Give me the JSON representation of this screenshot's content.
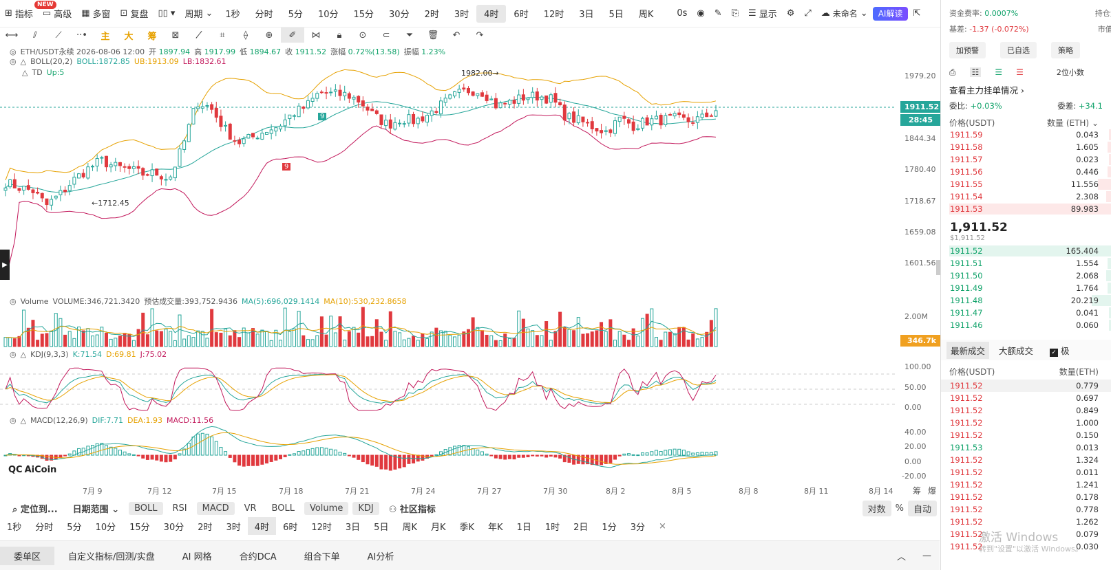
{
  "toolbar": {
    "items": [
      {
        "label": "指标",
        "icon": "indicator-icon"
      },
      {
        "label": "高级",
        "icon": "advanced-icon"
      },
      {
        "label": "多窗",
        "icon": "multiwindow-icon"
      },
      {
        "label": "复盘",
        "icon": "replay-icon"
      }
    ],
    "new_badge": "NEW",
    "period_label": "周期",
    "periods": [
      "1秒",
      "分时",
      "5分",
      "10分",
      "15分",
      "30分",
      "2时",
      "3时",
      "4时",
      "6时",
      "12时",
      "3日",
      "5日",
      "周K"
    ],
    "active_period": "4时",
    "countdown": "0s",
    "display_label": "显示",
    "unnamed_label": "未命名",
    "ai_label": "AI解读"
  },
  "chart_header": {
    "symbol_line": "ETH/USDT永续  2026-08-06 12:00",
    "open_label": "开",
    "open": "1897.94",
    "high_label": "高",
    "high": "1917.99",
    "low_label": "低",
    "low": "1894.67",
    "close_label": "收",
    "close": "1911.52",
    "change_label": "涨幅",
    "change": "0.72%(13.58)",
    "amp_label": "振幅",
    "amp": "1.23%",
    "boll_name": "BOLL(20,2)",
    "boll_mid": "BOLL:1872.85",
    "boll_ub": "UB:1913.09",
    "boll_lb": "LB:1832.61",
    "td_name": "TD",
    "td_val": "Up:5"
  },
  "volume_header": {
    "name": "Volume",
    "vol": "VOLUME:346,721.3420",
    "forecast": "预估成交量:393,752.9436",
    "ma5": "MA(5):696,029.1414",
    "ma10": "MA(10):530,232.8658"
  },
  "kdj_header": {
    "name": "KDJ(9,3,3)",
    "k": "K:71.54",
    "d": "D:69.81",
    "j": "J:75.02"
  },
  "macd_header": {
    "name": "MACD(12,26,9)",
    "dif": "DIF:7.71",
    "dea": "DEA:1.93",
    "macd": "MACD:11.56"
  },
  "price_axis": [
    "1979.20",
    "1844.34",
    "1780.40",
    "1718.67",
    "1659.08",
    "1601.56"
  ],
  "price_tags": {
    "last": "1911.52",
    "countdown": "28:45",
    "volume": "346.7k"
  },
  "annotations": {
    "high": "1982.00",
    "low": "1712.45",
    "td_up": "9",
    "td_down": "9"
  },
  "volume_axis": "2.00M",
  "kdj_axis": [
    "100.00",
    "50.00",
    "0.00"
  ],
  "macd_axis": [
    "40.00",
    "20.00",
    "0.00",
    "-20.00"
  ],
  "date_axis": [
    "7月 9",
    "7月 12",
    "7月 15",
    "7月 18",
    "7月 21",
    "7月 24",
    "7月 27",
    "7月 30",
    "8月 2",
    "8月 5",
    "8月 8",
    "8月 11",
    "8月 14"
  ],
  "brand": "AiCoin",
  "corner_labels": [
    "筹",
    "爆"
  ],
  "bottom_bar1": {
    "locate": "定位到...",
    "date_range": "日期范围",
    "indicators": [
      {
        "label": "BOLL",
        "chip": true
      },
      {
        "label": "RSI",
        "chip": false
      },
      {
        "label": "MACD",
        "chip": true
      },
      {
        "label": "VR",
        "chip": false
      },
      {
        "label": "BOLL",
        "chip": false
      },
      {
        "label": "Volume",
        "chip": true
      },
      {
        "label": "KDJ",
        "chip": true
      }
    ],
    "community": "社区指标",
    "log": "对数",
    "pct": "%",
    "auto": "自动"
  },
  "bottom_bar2": {
    "periods": [
      "1秒",
      "分时",
      "5分",
      "10分",
      "15分",
      "30分",
      "2时",
      "3时",
      "4时",
      "6时",
      "12时",
      "3日",
      "5日",
      "周K",
      "月K",
      "季K",
      "年K",
      "1日",
      "1时",
      "2日",
      "1分",
      "3分"
    ],
    "active": "4时"
  },
  "bottom_bar3": {
    "tabs": [
      "委单区",
      "自定义指标/回测/实盘",
      "AI 网格",
      "合约DCA",
      "组合下单",
      "AI分析"
    ]
  },
  "right_panel": {
    "funding_label": "资金费率:",
    "funding": "0.0007%",
    "basis_label": "基差:",
    "basis": "-1.37 (-0.072%)",
    "position_label": "持仓量(",
    "mktcap_label": "市值($",
    "buttons": [
      "加预警",
      "已自选",
      "策略"
    ],
    "depth_label": "2位小数",
    "main_orders": "查看主力挂单情况",
    "ratio_label": "委比:",
    "ratio": "+0.03%",
    "diff_label": "委差:",
    "diff": "+34.1",
    "col_price": "价格(USDT)",
    "col_qty": "数量 (ETH)",
    "asks": [
      {
        "p": "1911.59",
        "q": "0.043",
        "d": 0.01
      },
      {
        "p": "1911.58",
        "q": "1.605",
        "d": 0.02
      },
      {
        "p": "1911.57",
        "q": "0.023",
        "d": 0.01
      },
      {
        "p": "1911.56",
        "q": "0.446",
        "d": 0.02
      },
      {
        "p": "1911.55",
        "q": "11.556",
        "d": 0.08
      },
      {
        "p": "1911.54",
        "q": "2.308",
        "d": 0.03
      },
      {
        "p": "1911.53",
        "q": "89.983",
        "d": 1.0
      }
    ],
    "mid_price": "1,911.52",
    "mid_usd": "$1,911.52",
    "bids": [
      {
        "p": "1911.52",
        "q": "165.404",
        "d": 1.0
      },
      {
        "p": "1911.51",
        "q": "1.554",
        "d": 0.02
      },
      {
        "p": "1911.50",
        "q": "2.068",
        "d": 0.03
      },
      {
        "p": "1911.49",
        "q": "1.764",
        "d": 0.02
      },
      {
        "p": "1911.48",
        "q": "20.219",
        "d": 0.12
      },
      {
        "p": "1911.47",
        "q": "0.041",
        "d": 0.01
      },
      {
        "p": "1911.46",
        "q": "0.060",
        "d": 0.01
      }
    ],
    "trades_tab": "最新成交",
    "big_tab": "大额成交",
    "extreme_label": "极",
    "trade_col_price": "价格(USDT)",
    "trade_col_qty": "数量(ETH)",
    "trades": [
      {
        "p": "1911.52",
        "q": "0.779",
        "s": "sell"
      },
      {
        "p": "1911.52",
        "q": "0.697",
        "s": "sell"
      },
      {
        "p": "1911.52",
        "q": "0.849",
        "s": "sell"
      },
      {
        "p": "1911.52",
        "q": "1.000",
        "s": "sell"
      },
      {
        "p": "1911.52",
        "q": "0.150",
        "s": "sell"
      },
      {
        "p": "1911.53",
        "q": "0.013",
        "s": "buy"
      },
      {
        "p": "1911.52",
        "q": "1.324",
        "s": "sell"
      },
      {
        "p": "1911.52",
        "q": "0.011",
        "s": "sell"
      },
      {
        "p": "1911.52",
        "q": "1.241",
        "s": "sell"
      },
      {
        "p": "1911.52",
        "q": "0.178",
        "s": "sell"
      },
      {
        "p": "1911.52",
        "q": "0.778",
        "s": "sell"
      },
      {
        "p": "1911.52",
        "q": "1.262",
        "s": "sell"
      },
      {
        "p": "1911.52",
        "q": "0.079",
        "s": "sell"
      },
      {
        "p": "1911.52",
        "q": "0.030",
        "s": "sell"
      }
    ]
  },
  "watermark": {
    "line1": "激活 Windows",
    "line2": "转到\"设置\"以激活 Windows。"
  },
  "colors": {
    "up": "#26a69a",
    "down": "#e0393e",
    "boll_mid": "#26a69a",
    "boll_ub": "#e6a100",
    "boll_lb": "#c2185b",
    "accent": "#4d6bff"
  },
  "chart_data": {
    "type": "candlestick",
    "price_range": [
      1560,
      2010
    ],
    "candle_count": 156,
    "seed_path_close": [
      1762,
      1752,
      1745,
      1715,
      1738,
      1768,
      1790,
      1808,
      1795,
      1790,
      1780,
      1782,
      1770,
      1840,
      1930,
      1918,
      1875,
      1845,
      1855,
      1870,
      1880,
      1905,
      1920,
      1950,
      1945,
      1945,
      1930,
      1900,
      1882,
      1895,
      1890,
      1905,
      1925,
      1945,
      1955,
      1950,
      1920,
      1930,
      1940,
      1942,
      1935,
      1900,
      1890,
      1878,
      1868,
      1895,
      1880,
      1890,
      1892,
      1895,
      1890,
      1896,
      1912
    ]
  }
}
